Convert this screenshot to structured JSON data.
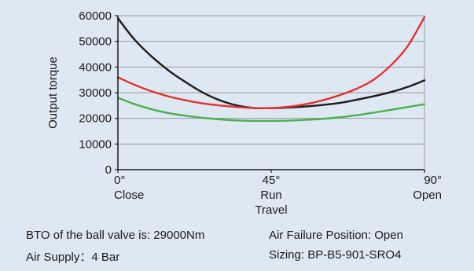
{
  "chart_data": {
    "type": "line",
    "ylabel": "Output torque",
    "xlabel": "Travel",
    "ylim": [
      0,
      60000
    ],
    "yticks": [
      0,
      10000,
      20000,
      30000,
      40000,
      50000,
      60000
    ],
    "xlim": [
      0,
      90
    ],
    "xticks": [
      {
        "value": 0,
        "label": "0°",
        "sublabel": "Close"
      },
      {
        "value": 45,
        "label": "45°",
        "sublabel": "Run"
      },
      {
        "value": 90,
        "label": "90°",
        "sublabel": "Open"
      }
    ],
    "grid": true,
    "series": [
      {
        "color": "#1a1a1a",
        "x": [
          0,
          5,
          10,
          15,
          20,
          25,
          30,
          35,
          40,
          45,
          50,
          55,
          60,
          65,
          70,
          75,
          80,
          85,
          90
        ],
        "values": [
          59000,
          50500,
          44000,
          38500,
          34000,
          30000,
          27000,
          25000,
          24000,
          24000,
          24200,
          24600,
          25200,
          26000,
          27200,
          28600,
          30200,
          32200,
          34800
        ]
      },
      {
        "color": "#e53030",
        "x": [
          0,
          5,
          10,
          15,
          20,
          25,
          30,
          35,
          40,
          45,
          50,
          55,
          60,
          65,
          70,
          75,
          80,
          85,
          90
        ],
        "values": [
          36000,
          33000,
          30500,
          28500,
          27000,
          25800,
          25000,
          24400,
          24000,
          24000,
          24500,
          25500,
          27000,
          29000,
          31500,
          35000,
          40500,
          48000,
          59500
        ]
      },
      {
        "color": "#4caf50",
        "x": [
          0,
          5,
          10,
          15,
          20,
          25,
          30,
          35,
          40,
          45,
          50,
          55,
          60,
          65,
          70,
          75,
          80,
          85,
          90
        ],
        "values": [
          28000,
          25500,
          23500,
          22000,
          21000,
          20200,
          19600,
          19200,
          19000,
          19000,
          19100,
          19400,
          19800,
          20400,
          21200,
          22200,
          23300,
          24400,
          25500
        ]
      }
    ]
  },
  "footer": {
    "bto": "BTO of the ball valve is: 29000Nm",
    "air_failure": "Air Failure Position: Open",
    "air_supply": "Air Supply：4 Bar",
    "sizing": "Sizing:  BP-B5-901-SRO4"
  }
}
